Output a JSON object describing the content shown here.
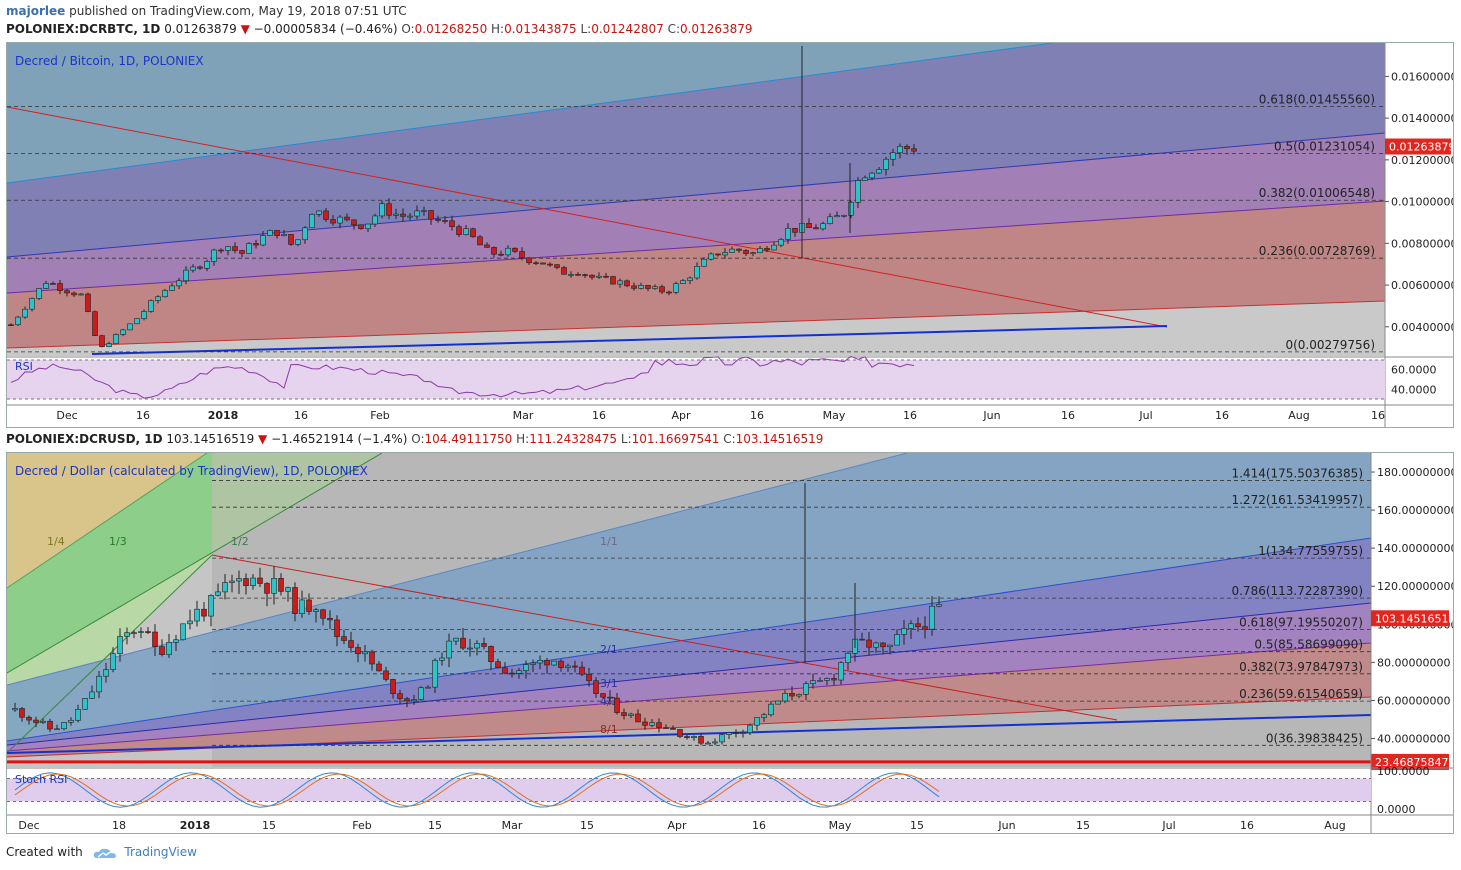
{
  "header": {
    "author": "majorlee",
    "published": "published on TradingView.com, May 19, 2018 07:51 UTC"
  },
  "charts": [
    {
      "symbol": "POLONIEX:DCRBTC, 1D",
      "last": "0.01263879",
      "change": "−0.00005834 (−0.46%)",
      "o_label": "O:",
      "o": "0.01268250",
      "h_label": "H:",
      "h": "0.01343875",
      "l_label": "L:",
      "l": "0.01242807",
      "c_label": "C:",
      "c": "0.01263879",
      "title": "Decred / Bitcoin, 1D, POLONIEX",
      "price_badge": "0.01263879",
      "indicator": "RSI"
    },
    {
      "symbol": "POLONIEX:DCRUSD, 1D",
      "last": "103.14516519",
      "change": "−1.46521914 (−1.4%)",
      "o_label": "O:",
      "o": "104.49111750",
      "h_label": "H:",
      "h": "111.24328475",
      "l_label": "L:",
      "l": "101.16697541",
      "c_label": "C:",
      "c": "103.14516519",
      "title": "Decred / Dollar (calculated by TradingView), 1D, POLONIEX",
      "price_badge": "103.14516519",
      "level_badge": "23.46875847",
      "indicator": "Stoch RSI"
    }
  ],
  "footer": {
    "created_with": "Created with",
    "brand": "TradingView"
  },
  "chart_data": [
    {
      "type": "candlestick",
      "title": "Decred / Bitcoin, 1D, POLONIEX",
      "ylim": [
        0.0026,
        0.0176
      ],
      "y_ticks": [
        "0.01600000",
        "0.01400000",
        "0.01200000",
        "0.01000000",
        "0.00800000",
        "0.00600000",
        "0.00400000"
      ],
      "y_tick_values": [
        0.016,
        0.014,
        0.012,
        0.01,
        0.008,
        0.006,
        0.004
      ],
      "x_tick_labels": [
        "Dec",
        "16",
        "2018",
        "16",
        "Feb",
        "Mar",
        "16",
        "Apr",
        "16",
        "May",
        "16",
        "Jun",
        "16",
        "Jul",
        "16",
        "Aug",
        "16"
      ],
      "fib_levels": [
        {
          "label": "0.618(0.01455560)",
          "value": 0.0145556
        },
        {
          "label": "0.5(0.01231054)",
          "value": 0.01231054
        },
        {
          "label": "0.382(0.01006548)",
          "value": 0.01006548
        },
        {
          "label": "0.236(0.00728769)",
          "value": 0.00728769
        },
        {
          "label": "0(0.00279756)",
          "value": 0.00279756
        }
      ],
      "close_path": [
        0.0041,
        0.0052,
        0.0062,
        0.0058,
        0.0055,
        0.0029,
        0.0036,
        0.0043,
        0.0052,
        0.006,
        0.0066,
        0.0072,
        0.008,
        0.0075,
        0.0082,
        0.0086,
        0.0078,
        0.0096,
        0.0093,
        0.009,
        0.0089,
        0.0097,
        0.0093,
        0.0094,
        0.0091,
        0.0088,
        0.0083,
        0.0075,
        0.0076,
        0.0073,
        0.0071,
        0.0066,
        0.0067,
        0.0063,
        0.0062,
        0.006,
        0.0058,
        0.0057,
        0.0062,
        0.007,
        0.0076,
        0.0077,
        0.0075,
        0.0081,
        0.0087,
        0.0087,
        0.0089,
        0.0094,
        0.0113,
        0.0118,
        0.0125,
        0.0126
      ],
      "rsi_ticks": [
        "60.0000",
        "40.0000"
      ],
      "rsi_tick_values": [
        60,
        40
      ]
    },
    {
      "type": "candlestick",
      "title": "Decred / Dollar (calculated by TradingView), 1D, POLONIEX",
      "ylim": [
        25,
        190
      ],
      "y_ticks": [
        "180.00000000",
        "160.00000000",
        "140.00000000",
        "120.00000000",
        "100.00000000",
        "80.00000000",
        "60.00000000",
        "40.00000000"
      ],
      "y_tick_values": [
        180,
        160,
        140,
        120,
        100,
        80,
        60,
        40
      ],
      "x_tick_labels": [
        "Dec",
        "18",
        "2018",
        "15",
        "Feb",
        "15",
        "Mar",
        "15",
        "Apr",
        "16",
        "May",
        "15",
        "Jun",
        "15",
        "Jul",
        "16",
        "Aug"
      ],
      "fib_levels": [
        {
          "label": "1.414(175.50376385)",
          "value": 175.50376385
        },
        {
          "label": "1.272(161.53419957)",
          "value": 161.53419957
        },
        {
          "label": "1(134.77559755)",
          "value": 134.77559755
        },
        {
          "label": "0.786(113.72287390)",
          "value": 113.7228739
        },
        {
          "label": "0.618(97.19550207)",
          "value": 97.19550207
        },
        {
          "label": "0.5(85.58699090)",
          "value": 85.5869909
        },
        {
          "label": "0.382(73.97847973)",
          "value": 73.97847973
        },
        {
          "label": "0.236(59.61540659)",
          "value": 59.61540659
        },
        {
          "label": "0(36.39838425)",
          "value": 36.39838425
        }
      ],
      "gann_labels": [
        "1/4",
        "1/3",
        "1/2",
        "1/1",
        "2/1",
        "3/1",
        "4/1",
        "8/1"
      ],
      "close_path": [
        55,
        50,
        45,
        48,
        60,
        75,
        92,
        100,
        85,
        95,
        105,
        110,
        120,
        125,
        122,
        118,
        108,
        112,
        95,
        90,
        80,
        68,
        60,
        65,
        85,
        92,
        88,
        80,
        75,
        78,
        82,
        80,
        70,
        62,
        55,
        50,
        48,
        45,
        40,
        38,
        42,
        45,
        52,
        60,
        65,
        68,
        72,
        88,
        90,
        85,
        95,
        100,
        108
      ],
      "stoch_ticks": [
        "100.0000",
        "0.0000"
      ],
      "stoch_tick_values": [
        100,
        0
      ]
    }
  ]
}
